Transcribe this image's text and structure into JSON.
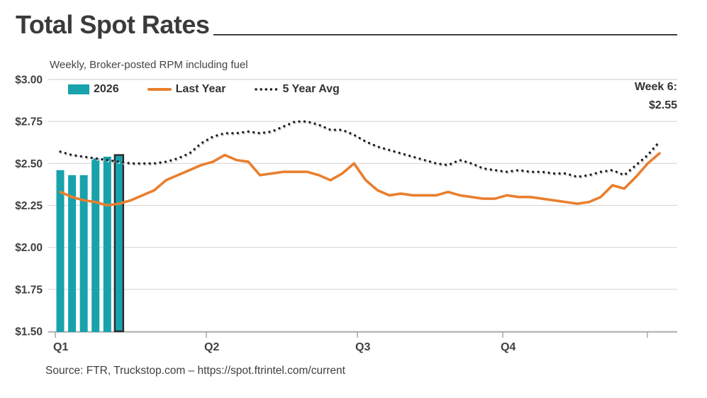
{
  "footer": {
    "source": "Source: FTR, Truckstop.com – https://spot.ftrintel.com/current"
  },
  "chart_data": {
    "type": "combo-bar-line",
    "title": "Total Spot Rates",
    "subtitle": "Weekly, Broker-posted RPM including fuel",
    "x_unit": "week",
    "weeks": 52,
    "quarter_labels": [
      "Q1",
      "Q2",
      "Q3",
      "Q4"
    ],
    "quarter_tick_weeks": [
      0.58,
      13.43,
      26.29,
      38.66,
      50.97
    ],
    "ylim": [
      1.5,
      3.0
    ],
    "y_ticks": [
      {
        "label": "$3.00",
        "value": 3.0
      },
      {
        "label": "$2.75",
        "value": 2.75
      },
      {
        "label": "$2.50",
        "value": 2.5
      },
      {
        "label": "$2.25",
        "value": 2.25
      },
      {
        "label": "$2.00",
        "value": 2.0
      },
      {
        "label": "$1.75",
        "value": 1.75
      },
      {
        "label": "$1.50",
        "value": 1.5
      }
    ],
    "grid": true,
    "legend_position": "top-left",
    "annotation": {
      "label": "Week 6:",
      "value": "$2.55"
    },
    "colors": {
      "teal": "#17A2AC",
      "orange": "#E97F2E",
      "dots": "#1A1A1A",
      "grid": "#D8D8D8",
      "axis": "#999999",
      "highlight_outline": "#2B2B2B"
    },
    "series": [
      {
        "name": "2026",
        "type": "bar",
        "color": "#17A2AC",
        "weeks": [
          1,
          2,
          3,
          4,
          5,
          6
        ],
        "values": [
          2.46,
          2.43,
          2.43,
          2.53,
          2.54,
          2.55
        ],
        "highlight_last": true
      },
      {
        "name": "Last Year",
        "type": "line",
        "color": "#E97F2E",
        "values": [
          2.33,
          2.3,
          2.28,
          2.27,
          2.25,
          2.26,
          2.28,
          2.31,
          2.34,
          2.4,
          2.43,
          2.46,
          2.49,
          2.51,
          2.55,
          2.52,
          2.51,
          2.43,
          2.44,
          2.45,
          2.45,
          2.45,
          2.43,
          2.4,
          2.44,
          2.5,
          2.4,
          2.34,
          2.31,
          2.32,
          2.31,
          2.31,
          2.31,
          2.33,
          2.31,
          2.3,
          2.29,
          2.29,
          2.31,
          2.3,
          2.3,
          2.29,
          2.28,
          2.27,
          2.26,
          2.27,
          2.3,
          2.37,
          2.35,
          2.42,
          2.5,
          2.56
        ]
      },
      {
        "name": "5 Year Avg",
        "type": "dotted-line",
        "color": "#1A1A1A",
        "values": [
          2.57,
          2.55,
          2.54,
          2.53,
          2.52,
          2.51,
          2.5,
          2.5,
          2.5,
          2.51,
          2.53,
          2.56,
          2.62,
          2.66,
          2.68,
          2.68,
          2.69,
          2.68,
          2.69,
          2.72,
          2.75,
          2.75,
          2.73,
          2.7,
          2.7,
          2.67,
          2.63,
          2.6,
          2.58,
          2.56,
          2.54,
          2.52,
          2.5,
          2.49,
          2.52,
          2.5,
          2.47,
          2.46,
          2.45,
          2.46,
          2.45,
          2.45,
          2.44,
          2.44,
          2.42,
          2.43,
          2.45,
          2.46,
          2.43,
          2.49,
          2.55,
          2.63
        ]
      }
    ]
  }
}
